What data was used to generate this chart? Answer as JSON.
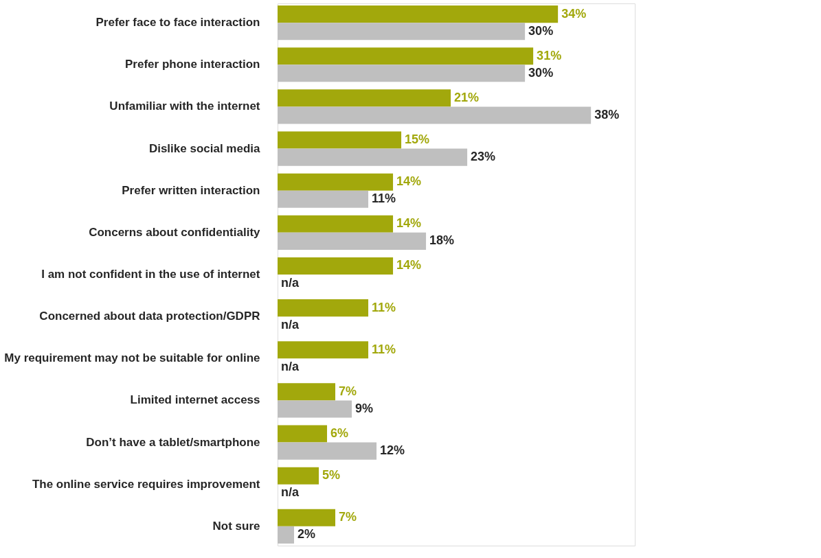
{
  "chart_data": {
    "type": "bar",
    "orientation": "horizontal",
    "categories": [
      "Prefer face to face interaction",
      "Prefer phone interaction",
      "Unfamiliar with the internet",
      "Dislike social media",
      "Prefer written interaction",
      "Concerns about confidentiality",
      "I am not confident in the use of internet",
      "Concerned about data protection/GDPR",
      "My requirement may not be suitable for online",
      "Limited internet access",
      "Don’t have a tablet/smartphone",
      "The online service requires improvement",
      "Not sure"
    ],
    "series": [
      {
        "color": "#a2a80c",
        "values": [
          34,
          31,
          21,
          15,
          14,
          14,
          14,
          11,
          11,
          7,
          6,
          5,
          7
        ],
        "value_labels": [
          "34%",
          "31%",
          "21%",
          "15%",
          "14%",
          "14%",
          "14%",
          "11%",
          "11%",
          "7%",
          "6%",
          "5%",
          "7%"
        ]
      },
      {
        "color": "#bfbfbf",
        "values": [
          30,
          30,
          38,
          23,
          11,
          18,
          null,
          null,
          null,
          9,
          12,
          null,
          2
        ],
        "value_labels": [
          "30%",
          "30%",
          "38%",
          "23%",
          "11%",
          "18%",
          "n/a",
          "n/a",
          "n/a",
          "9%",
          "12%",
          "n/a",
          "2%"
        ]
      }
    ],
    "legend": false
  }
}
